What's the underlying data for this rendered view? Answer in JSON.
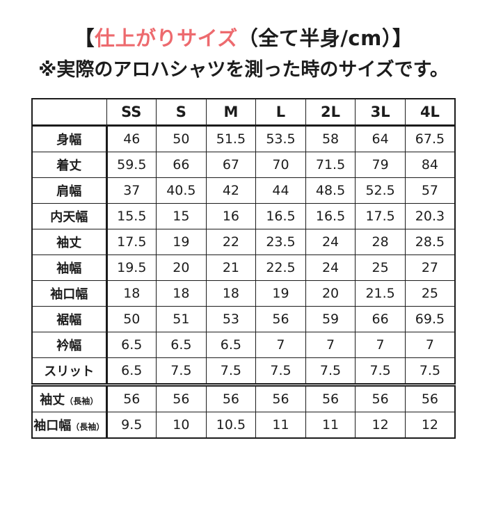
{
  "title": {
    "bracket_open": "【",
    "highlight": "仕上がりサイズ",
    "rest": "（全て半身/cm）】"
  },
  "subtitle": "※実際のアロハシャツを測った時のサイズです。",
  "colors": {
    "highlight_red": "#ed6a6e",
    "text": "#1c1c1c",
    "border": "#1b1b1b",
    "background": "#ffffff"
  },
  "table": {
    "corner_label": "",
    "columns": [
      "SS",
      "S",
      "M",
      "L",
      "2L",
      "3L",
      "4L"
    ],
    "rows": [
      {
        "label": "身幅",
        "values": [
          "46",
          "50",
          "51.5",
          "53.5",
          "58",
          "64",
          "67.5"
        ]
      },
      {
        "label": "着丈",
        "values": [
          "59.5",
          "66",
          "67",
          "70",
          "71.5",
          "79",
          "84"
        ]
      },
      {
        "label": "肩幅",
        "values": [
          "37",
          "40.5",
          "42",
          "44",
          "48.5",
          "52.5",
          "57"
        ]
      },
      {
        "label": "内天幅",
        "values": [
          "15.5",
          "15",
          "16",
          "16.5",
          "16.5",
          "17.5",
          "20.3"
        ]
      },
      {
        "label": "袖丈",
        "values": [
          "17.5",
          "19",
          "22",
          "23.5",
          "24",
          "28",
          "28.5"
        ]
      },
      {
        "label": "袖幅",
        "values": [
          "19.5",
          "20",
          "21",
          "22.5",
          "24",
          "25",
          "27"
        ]
      },
      {
        "label": "袖口幅",
        "values": [
          "18",
          "18",
          "18",
          "19",
          "20",
          "21.5",
          "25"
        ]
      },
      {
        "label": "裾幅",
        "values": [
          "50",
          "51",
          "53",
          "56",
          "59",
          "66",
          "69.5"
        ]
      },
      {
        "label": "衿幅",
        "values": [
          "6.5",
          "6.5",
          "6.5",
          "7",
          "7",
          "7",
          "7"
        ]
      },
      {
        "label": "スリット",
        "values": [
          "6.5",
          "7.5",
          "7.5",
          "7.5",
          "7.5",
          "7.5",
          "7.5"
        ]
      },
      {
        "label": "袖丈",
        "label_note": "（長袖）",
        "separator_above": "double",
        "values": [
          "56",
          "56",
          "56",
          "56",
          "56",
          "56",
          "56"
        ]
      },
      {
        "label": "袖口幅",
        "label_note": "（長袖）",
        "values": [
          "9.5",
          "10",
          "10.5",
          "11",
          "11",
          "12",
          "12"
        ]
      }
    ]
  }
}
